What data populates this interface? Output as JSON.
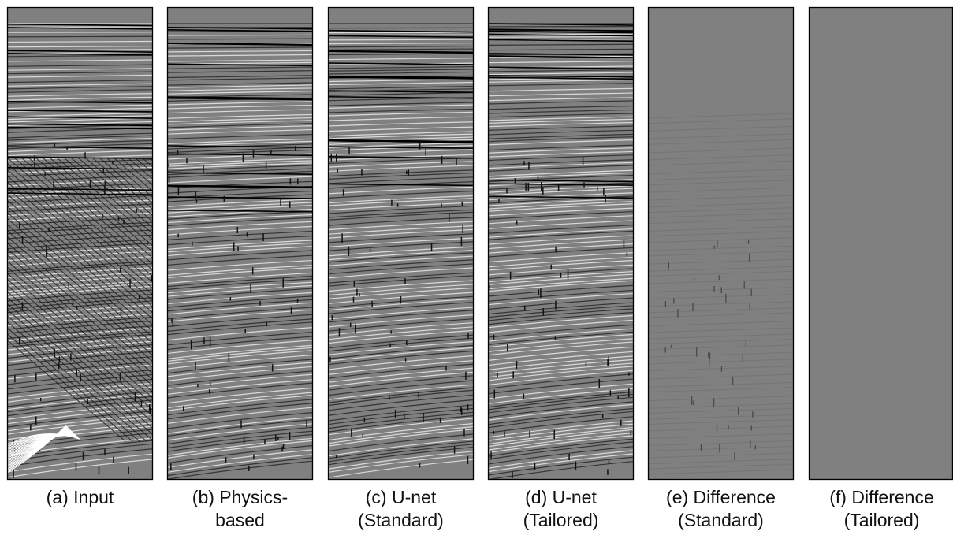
{
  "panels": [
    {
      "caption": [
        "(a) Input"
      ]
    },
    {
      "caption": [
        "(b) Physics-",
        "based"
      ]
    },
    {
      "caption": [
        "(c) U-net",
        "(Standard)"
      ]
    },
    {
      "caption": [
        "(d) U-net",
        "(Tailored)"
      ]
    },
    {
      "caption": [
        "(e) Difference",
        "(Standard)"
      ]
    },
    {
      "caption": [
        "(f) Difference",
        "(Tailored)"
      ]
    }
  ]
}
